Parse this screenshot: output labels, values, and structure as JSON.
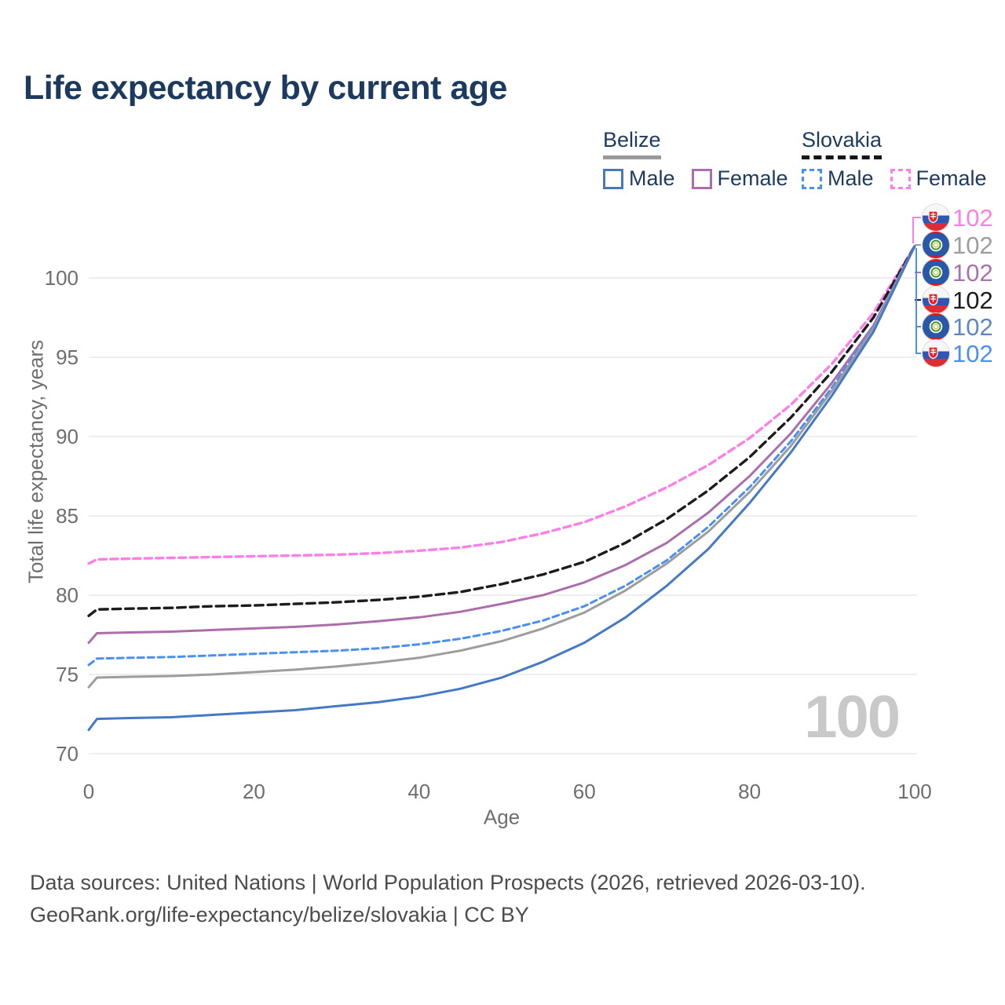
{
  "header": {
    "title": "Life expectancy by current age"
  },
  "legend": {
    "groups": [
      {
        "country": "Belize",
        "line_style": "solid",
        "line_color": "#9a9a9a",
        "items": [
          {
            "label": "Male",
            "color": "#4579c4",
            "dashed": false
          },
          {
            "label": "Female",
            "color": "#ab6dac",
            "dashed": false
          }
        ]
      },
      {
        "country": "Slovakia",
        "line_style": "dashed",
        "line_color": "#161616",
        "items": [
          {
            "label": "Male",
            "color": "#4a8ff2",
            "dashed": true
          },
          {
            "label": "Female",
            "color": "#fc7fe8",
            "dashed": true
          }
        ]
      }
    ]
  },
  "chart_data": {
    "type": "line",
    "title": "Life expectancy by current age",
    "xlabel": "Age",
    "ylabel": "Total life expectancy, years",
    "xlim": [
      0,
      100
    ],
    "ylim": [
      70,
      102.5
    ],
    "x_ticks": [
      0,
      20,
      40,
      60,
      80,
      100
    ],
    "y_ticks": [
      70,
      75,
      80,
      85,
      90,
      95,
      100
    ],
    "grid": "horizontal",
    "legend_position": "top-right",
    "watermark": "100",
    "x": [
      0,
      1,
      5,
      10,
      15,
      20,
      25,
      30,
      35,
      40,
      45,
      50,
      55,
      60,
      65,
      70,
      75,
      80,
      85,
      90,
      95,
      100
    ],
    "series": [
      {
        "id": "slovakia_female",
        "name": "Slovakia Female",
        "country": "Slovakia",
        "color": "#fb7fe7",
        "dash": "9 5.5",
        "width": 3.4,
        "flag": "slovakia",
        "values": [
          82.0,
          82.25,
          82.3,
          82.35,
          82.4,
          82.45,
          82.5,
          82.55,
          82.65,
          82.8,
          83.0,
          83.35,
          83.9,
          84.6,
          85.6,
          86.8,
          88.2,
          89.9,
          92.0,
          94.6,
          97.8,
          102
        ]
      },
      {
        "id": "slovakia",
        "name": "Slovakia",
        "country": "Slovakia",
        "color": "#1c1c1c",
        "dash": "10.5 6",
        "width": 3.4,
        "flag": "slovakia",
        "values": [
          78.7,
          79.1,
          79.15,
          79.2,
          79.3,
          79.35,
          79.45,
          79.55,
          79.7,
          79.9,
          80.2,
          80.7,
          81.3,
          82.1,
          83.3,
          84.8,
          86.6,
          88.7,
          91.2,
          94.1,
          97.5,
          102
        ]
      },
      {
        "id": "belize_female",
        "name": "Belize Female",
        "country": "Belize",
        "color": "#ab6dac",
        "dash": null,
        "width": 3,
        "flag": "belize",
        "values": [
          77.0,
          77.6,
          77.65,
          77.7,
          77.8,
          77.9,
          78.0,
          78.15,
          78.35,
          78.6,
          78.95,
          79.45,
          80.0,
          80.8,
          81.9,
          83.3,
          85.2,
          87.5,
          90.2,
          93.4,
          97.0,
          102
        ]
      },
      {
        "id": "slovakia_male",
        "name": "Slovakia Male",
        "country": "Slovakia",
        "color": "#4a8ff2",
        "dash": "8 5",
        "width": 3,
        "flag": "slovakia",
        "values": [
          75.6,
          76.0,
          76.05,
          76.1,
          76.2,
          76.3,
          76.4,
          76.5,
          76.65,
          76.9,
          77.25,
          77.75,
          78.4,
          79.3,
          80.6,
          82.2,
          84.3,
          86.8,
          89.7,
          93.1,
          96.9,
          102
        ]
      },
      {
        "id": "belize",
        "name": "Belize",
        "country": "Belize",
        "color": "#9d9d9d",
        "dash": null,
        "width": 3,
        "flag": "belize",
        "values": [
          74.2,
          74.8,
          74.85,
          74.9,
          75.0,
          75.15,
          75.3,
          75.5,
          75.75,
          76.05,
          76.5,
          77.1,
          77.9,
          78.9,
          80.3,
          82.0,
          84.0,
          86.5,
          89.4,
          92.9,
          96.8,
          102
        ]
      },
      {
        "id": "belize_male",
        "name": "Belize Male",
        "country": "Belize",
        "color": "#4579c4",
        "dash": null,
        "width": 3,
        "flag": "belize",
        "values": [
          71.5,
          72.2,
          72.25,
          72.3,
          72.45,
          72.6,
          72.75,
          73.0,
          73.25,
          73.6,
          74.1,
          74.8,
          75.8,
          77.0,
          78.6,
          80.6,
          82.9,
          85.8,
          89.0,
          92.6,
          96.6,
          102
        ]
      }
    ],
    "end_labels": [
      {
        "series": "slovakia_female",
        "flag": "slovakia",
        "value": "102",
        "color": "#fb7fe7"
      },
      {
        "series": "belize",
        "flag": "belize",
        "value": "102",
        "color": "#9d9d9d"
      },
      {
        "series": "belize_female",
        "flag": "belize",
        "value": "102",
        "color": "#a872ab"
      },
      {
        "series": "slovakia",
        "flag": "slovakia",
        "value": "102",
        "color": "#1c1c1c"
      },
      {
        "series": "belize_male",
        "flag": "belize",
        "value": "102",
        "color": "#5e86c4"
      },
      {
        "series": "slovakia_male",
        "flag": "slovakia",
        "value": "102",
        "color": "#4a8ff2"
      }
    ]
  },
  "footer": {
    "line1": "Data sources: United Nations | World Population Prospects (2026, retrieved 2026-03-10).",
    "line2": "GeoRank.org/life-expectancy/belize/slovakia | CC BY"
  }
}
